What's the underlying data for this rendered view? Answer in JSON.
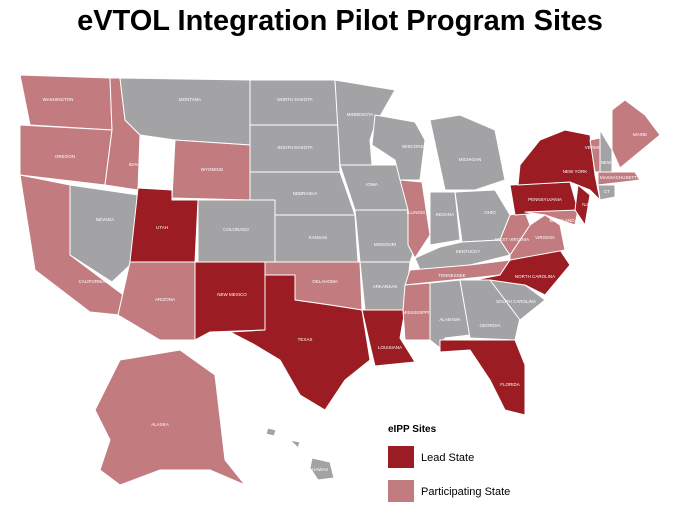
{
  "header": {
    "title": "eVTOL Integration Pilot Program Sites"
  },
  "states": [
    {
      "label": "WASHINGTON",
      "color": "#c27c80"
    },
    {
      "label": "OREGON",
      "color": "#c27c80"
    },
    {
      "label": "CALIFORNIA",
      "color": "#c27c80"
    },
    {
      "label": "NEVADA",
      "color": "#a3a3a5"
    },
    {
      "label": "IDAHO",
      "color": "#c27c80"
    },
    {
      "label": "MONTANA",
      "color": "#a3a3a5"
    },
    {
      "label": "WYOMING",
      "color": "#c27c80"
    },
    {
      "label": "UTAH",
      "color": "#9b1c22"
    },
    {
      "label": "ARIZONA",
      "color": "#c27c80"
    },
    {
      "label": "COLORADO",
      "color": "#a3a3a5"
    },
    {
      "label": "NEW MEXICO",
      "color": "#9b1c22"
    },
    {
      "label": "NORTH DAKOTA",
      "color": "#a3a3a5"
    },
    {
      "label": "SOUTH DAKOTA",
      "color": "#a3a3a5"
    },
    {
      "label": "NEBRASKA",
      "color": "#a3a3a5"
    },
    {
      "label": "KANSAS",
      "color": "#a3a3a5"
    },
    {
      "label": "OKLAHOMA",
      "color": "#c27c80"
    },
    {
      "label": "TEXAS",
      "color": "#9b1c22"
    },
    {
      "label": "MINNESOTA",
      "color": "#a3a3a5"
    },
    {
      "label": "IOWA",
      "color": "#a3a3a5"
    },
    {
      "label": "MISSOURI",
      "color": "#a3a3a5"
    },
    {
      "label": "ARKANSAS",
      "color": "#a3a3a5"
    },
    {
      "label": "LOUISIANA",
      "color": "#9b1c22"
    },
    {
      "label": "WISCONSIN",
      "color": "#a3a3a5"
    },
    {
      "label": "ILLINOIS",
      "color": "#c27c80"
    },
    {
      "label": "MICHIGAN",
      "color": "#a3a3a5"
    },
    {
      "label": "INDIANA",
      "color": "#a3a3a5"
    },
    {
      "label": "OHIO",
      "color": "#a3a3a5"
    },
    {
      "label": "KENTUCKY",
      "color": "#a3a3a5"
    },
    {
      "label": "TENNESSEE",
      "color": "#c27c80"
    },
    {
      "label": "MISSISSIPPI",
      "color": "#c27c80"
    },
    {
      "label": "ALABAMA",
      "color": "#a3a3a5"
    },
    {
      "label": "GEORGIA",
      "color": "#a3a3a5"
    },
    {
      "label": "FLORIDA",
      "color": "#9b1c22"
    },
    {
      "label": "SOUTH CAROLINA",
      "color": "#a3a3a5"
    },
    {
      "label": "NORTH CAROLINA",
      "color": "#9b1c22"
    },
    {
      "label": "VIRGINIA",
      "color": "#c27c80"
    },
    {
      "label": "WEST VIRGINIA",
      "color": "#c27c80"
    },
    {
      "label": "PENNSYLVANIA",
      "color": "#9b1c22"
    },
    {
      "label": "NEW YORK",
      "color": "#9b1c22"
    },
    {
      "label": "MARYLAND",
      "color": "#c27c80"
    },
    {
      "label": "NJ",
      "color": "#9b1c22"
    },
    {
      "label": "VERMONT",
      "color": "#c27c80"
    },
    {
      "label": "NEW HAMPSHIRE",
      "color": "#a3a3a5"
    },
    {
      "label": "MASSACHUSETTS",
      "color": "#c27c80"
    },
    {
      "label": "CT",
      "color": "#a3a3a5"
    },
    {
      "label": "MAINE",
      "color": "#c27c80"
    },
    {
      "label": "ALASKA",
      "color": "#c27c80"
    },
    {
      "label": "HAWAII",
      "color": "#a3a3a5"
    }
  ],
  "legend": {
    "title": "eIPP Sites",
    "items": [
      {
        "label": "Lead State",
        "color": "#9b1c22"
      },
      {
        "label": "Participating State",
        "color": "#c27c80"
      }
    ]
  }
}
